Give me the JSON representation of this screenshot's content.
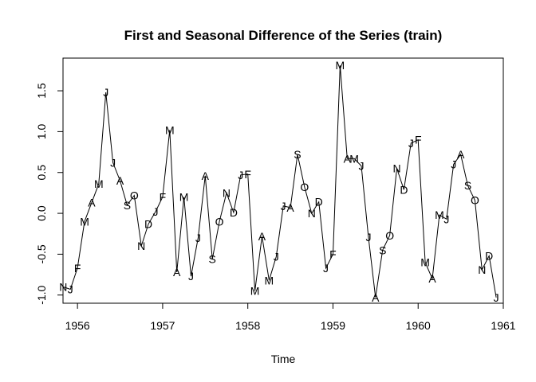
{
  "chart_data": {
    "type": "line",
    "title": "First and Seasonal Difference of the Series (train)",
    "xlabel": "Time",
    "ylabel": "",
    "xlim": [
      1955.83,
      1961.0
    ],
    "ylim": [
      -1.1,
      1.9
    ],
    "xticks": [
      1956,
      1957,
      1958,
      1959,
      1960,
      1961
    ],
    "yticks": [
      -1.0,
      -0.5,
      0.0,
      0.5,
      1.0,
      1.5
    ],
    "xtick_labels": [
      "1956",
      "1957",
      "1958",
      "1959",
      "1960",
      "1961"
    ],
    "ytick_labels": [
      "-1.0",
      "-0.5",
      "0.0",
      "0.5",
      "1.0",
      "1.5"
    ],
    "grid": false,
    "line_color": "#000000",
    "x_start": 1955.8333,
    "x_step": 0.083333,
    "values": [
      -0.9,
      -0.93,
      -0.67,
      -0.1,
      0.13,
      0.36,
      1.48,
      0.62,
      0.4,
      0.1,
      0.22,
      -0.4,
      -0.13,
      0.02,
      0.2,
      1.02,
      -0.72,
      0.2,
      -0.77,
      -0.3,
      0.46,
      -0.56,
      -0.1,
      0.25,
      0.01,
      0.47,
      0.48,
      -0.95,
      -0.28,
      -0.82,
      -0.53,
      0.09,
      0.07,
      0.72,
      0.32,
      0.0,
      0.14,
      -0.67,
      -0.5,
      1.81,
      0.67,
      0.67,
      0.58,
      -0.29,
      -1.03,
      -0.45,
      -0.27,
      0.55,
      0.29,
      0.86,
      0.9,
      -0.6,
      -0.8,
      -0.02,
      -0.07,
      0.6,
      0.72,
      0.34,
      0.16,
      -0.69,
      -0.52,
      -1.03
    ],
    "point_labels": [
      "N",
      "J",
      "F",
      "M",
      "A",
      "M",
      "J",
      "J",
      "A",
      "S",
      "O",
      "N",
      "D",
      "J",
      "F",
      "M",
      "A",
      "M",
      "J",
      "J",
      "A",
      "S",
      "O",
      "N",
      "D",
      "J",
      "F",
      "M",
      "A",
      "M",
      "J",
      "J",
      "A",
      "S",
      "O",
      "N",
      "D",
      "J",
      "F",
      "M",
      "A",
      "M",
      "J",
      "J",
      "A",
      "S",
      "O",
      "N",
      "D",
      "J",
      "F",
      "M",
      "A",
      "M",
      "J",
      "J",
      "A",
      "S",
      "O",
      "N",
      "D",
      "J"
    ]
  }
}
